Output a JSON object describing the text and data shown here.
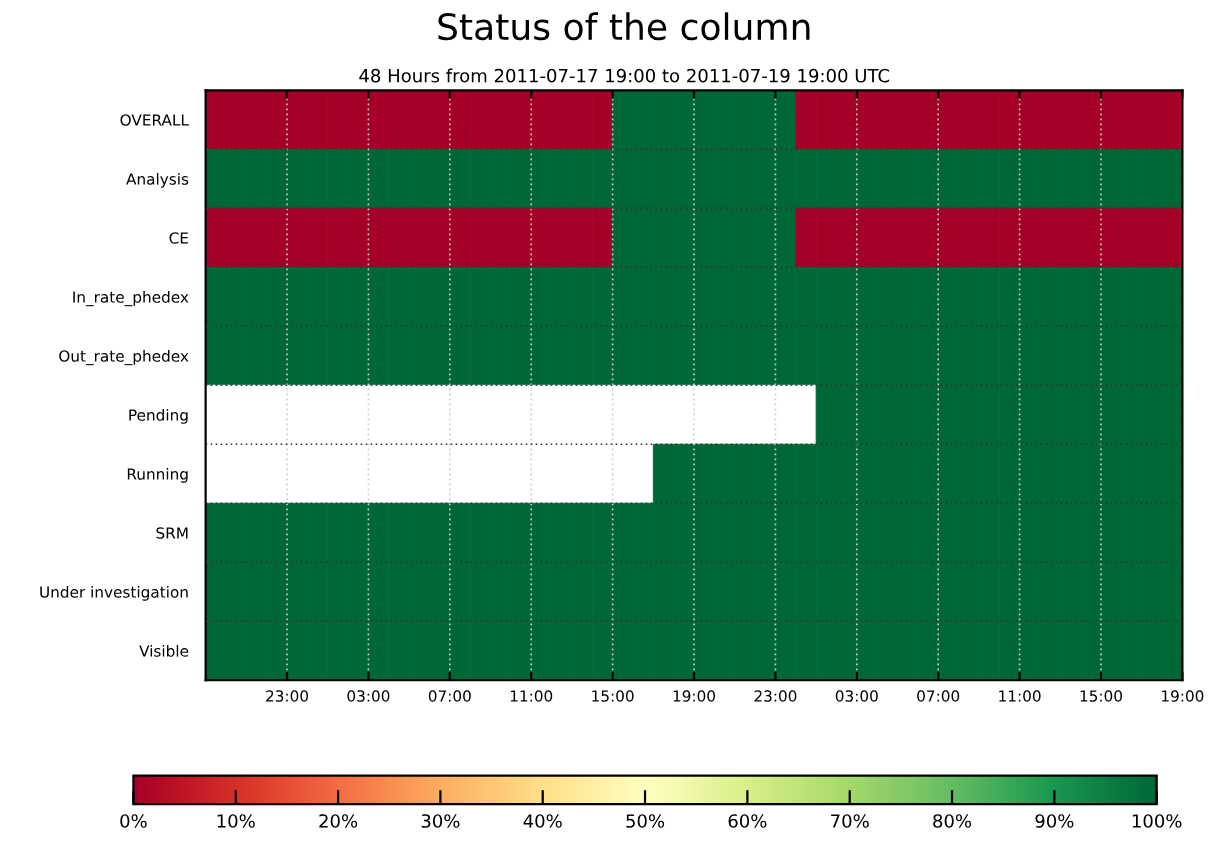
{
  "chart_data": {
    "type": "heatmap",
    "title": "Status of the column",
    "subtitle": "48 Hours from 2011-07-17 19:00 to 2011-07-19 19:00 UTC",
    "x": [
      "2011-07-17T19:30",
      "2011-07-17T20:30",
      "2011-07-17T21:30",
      "2011-07-17T22:30",
      "2011-07-17T23:30",
      "2011-07-18T00:30",
      "2011-07-18T01:30",
      "2011-07-18T02:30",
      "2011-07-18T03:30",
      "2011-07-18T04:30",
      "2011-07-18T05:30",
      "2011-07-18T06:30",
      "2011-07-18T07:30",
      "2011-07-18T08:30",
      "2011-07-18T09:30",
      "2011-07-18T10:30",
      "2011-07-18T11:30",
      "2011-07-18T12:30",
      "2011-07-18T13:30",
      "2011-07-18T14:30",
      "2011-07-18T15:30",
      "2011-07-18T16:30",
      "2011-07-18T17:30",
      "2011-07-18T18:30",
      "2011-07-18T19:30",
      "2011-07-18T20:30",
      "2011-07-18T21:30",
      "2011-07-18T22:30",
      "2011-07-18T23:30",
      "2011-07-19T00:30",
      "2011-07-19T01:30",
      "2011-07-19T02:30",
      "2011-07-19T03:30",
      "2011-07-19T04:30",
      "2011-07-19T05:30",
      "2011-07-19T06:30",
      "2011-07-19T07:30",
      "2011-07-19T08:30",
      "2011-07-19T09:30",
      "2011-07-19T10:30",
      "2011-07-19T11:30",
      "2011-07-19T12:30",
      "2011-07-19T13:30",
      "2011-07-19T14:30",
      "2011-07-19T15:30",
      "2011-07-19T16:30",
      "2011-07-19T17:30",
      "2011-07-19T18:30"
    ],
    "xlim": [
      "2011-07-17T19:00",
      "2011-07-19T19:00"
    ],
    "xticks": [
      {
        "value": "2011-07-17T23:00",
        "label": "23:00"
      },
      {
        "value": "2011-07-18T03:00",
        "label": "03:00"
      },
      {
        "value": "2011-07-18T07:00",
        "label": "07:00"
      },
      {
        "value": "2011-07-18T11:00",
        "label": "11:00"
      },
      {
        "value": "2011-07-18T15:00",
        "label": "15:00"
      },
      {
        "value": "2011-07-18T19:00",
        "label": "19:00"
      },
      {
        "value": "2011-07-18T23:00",
        "label": "23:00"
      },
      {
        "value": "2011-07-19T03:00",
        "label": "03:00"
      },
      {
        "value": "2011-07-19T07:00",
        "label": "07:00"
      },
      {
        "value": "2011-07-19T11:00",
        "label": "11:00"
      },
      {
        "value": "2011-07-19T15:00",
        "label": "15:00"
      },
      {
        "value": "2011-07-19T19:00",
        "label": "19:00"
      }
    ],
    "y_categories": [
      "OVERALL",
      "Analysis",
      "CE",
      "In_rate_phedex",
      "Out_rate_phedex",
      "Pending",
      "Running",
      "SRM",
      "Under investigation",
      "Visible"
    ],
    "cells": [
      [
        0,
        0,
        0,
        0,
        0,
        0,
        0,
        0,
        0,
        0,
        0,
        0,
        0,
        0,
        0,
        0,
        0,
        0,
        0,
        0,
        100,
        100,
        100,
        100,
        100,
        100,
        100,
        100,
        100,
        0,
        0,
        0,
        0,
        0,
        0,
        0,
        0,
        0,
        0,
        0,
        0,
        0,
        0,
        0,
        0,
        0,
        0,
        0
      ],
      [
        100,
        100,
        100,
        100,
        100,
        100,
        100,
        100,
        100,
        100,
        100,
        100,
        100,
        100,
        100,
        100,
        100,
        100,
        100,
        100,
        100,
        100,
        100,
        100,
        100,
        100,
        100,
        100,
        100,
        100,
        100,
        100,
        100,
        100,
        100,
        100,
        100,
        100,
        100,
        100,
        100,
        100,
        100,
        100,
        100,
        100,
        100,
        100
      ],
      [
        0,
        0,
        0,
        0,
        0,
        0,
        0,
        0,
        0,
        0,
        0,
        0,
        0,
        0,
        0,
        0,
        0,
        0,
        0,
        0,
        100,
        100,
        100,
        100,
        100,
        100,
        100,
        100,
        100,
        0,
        0,
        0,
        0,
        0,
        0,
        0,
        0,
        0,
        0,
        0,
        0,
        0,
        0,
        0,
        0,
        0,
        0,
        0
      ],
      [
        100,
        100,
        100,
        100,
        100,
        100,
        100,
        100,
        100,
        100,
        100,
        100,
        100,
        100,
        100,
        100,
        100,
        100,
        100,
        100,
        100,
        100,
        100,
        100,
        100,
        100,
        100,
        100,
        100,
        100,
        100,
        100,
        100,
        100,
        100,
        100,
        100,
        100,
        100,
        100,
        100,
        100,
        100,
        100,
        100,
        100,
        100,
        100
      ],
      [
        100,
        100,
        100,
        100,
        100,
        100,
        100,
        100,
        100,
        100,
        100,
        100,
        100,
        100,
        100,
        100,
        100,
        100,
        100,
        100,
        100,
        100,
        100,
        100,
        100,
        100,
        100,
        100,
        100,
        100,
        100,
        100,
        100,
        100,
        100,
        100,
        100,
        100,
        100,
        100,
        100,
        100,
        100,
        100,
        100,
        100,
        100,
        100
      ],
      [
        null,
        null,
        null,
        null,
        null,
        null,
        null,
        null,
        null,
        null,
        null,
        null,
        null,
        null,
        null,
        null,
        null,
        null,
        null,
        null,
        null,
        null,
        null,
        null,
        null,
        null,
        null,
        null,
        null,
        null,
        100,
        100,
        100,
        100,
        100,
        100,
        100,
        100,
        100,
        100,
        100,
        100,
        100,
        100,
        100,
        100,
        100,
        100
      ],
      [
        null,
        null,
        null,
        null,
        null,
        null,
        null,
        null,
        null,
        null,
        null,
        null,
        null,
        null,
        null,
        null,
        null,
        null,
        null,
        null,
        null,
        null,
        100,
        100,
        100,
        100,
        100,
        100,
        100,
        100,
        100,
        100,
        100,
        100,
        100,
        100,
        100,
        100,
        100,
        100,
        100,
        100,
        100,
        100,
        100,
        100,
        100,
        100
      ],
      [
        100,
        100,
        100,
        100,
        100,
        100,
        100,
        100,
        100,
        100,
        100,
        100,
        100,
        100,
        100,
        100,
        100,
        100,
        100,
        100,
        100,
        100,
        100,
        100,
        100,
        100,
        100,
        100,
        100,
        100,
        100,
        100,
        100,
        100,
        100,
        100,
        100,
        100,
        100,
        100,
        100,
        100,
        100,
        100,
        100,
        100,
        100,
        100
      ],
      [
        100,
        100,
        100,
        100,
        100,
        100,
        100,
        100,
        100,
        100,
        100,
        100,
        100,
        100,
        100,
        100,
        100,
        100,
        100,
        100,
        100,
        100,
        100,
        100,
        100,
        100,
        100,
        100,
        100,
        100,
        100,
        100,
        100,
        100,
        100,
        100,
        100,
        100,
        100,
        100,
        100,
        100,
        100,
        100,
        100,
        100,
        100,
        100
      ],
      [
        100,
        100,
        100,
        100,
        100,
        100,
        100,
        100,
        100,
        100,
        100,
        100,
        100,
        100,
        100,
        100,
        100,
        100,
        100,
        100,
        100,
        100,
        100,
        100,
        100,
        100,
        100,
        100,
        100,
        100,
        100,
        100,
        100,
        100,
        100,
        100,
        100,
        100,
        100,
        100,
        100,
        100,
        100,
        100,
        100,
        100,
        100,
        100
      ]
    ],
    "clim": [
      0,
      100
    ],
    "cticks": [
      {
        "value": 0,
        "label": "0%"
      },
      {
        "value": 10,
        "label": "10%"
      },
      {
        "value": 20,
        "label": "20%"
      },
      {
        "value": 30,
        "label": "30%"
      },
      {
        "value": 40,
        "label": "40%"
      },
      {
        "value": 50,
        "label": "50%"
      },
      {
        "value": 60,
        "label": "60%"
      },
      {
        "value": 70,
        "label": "70%"
      },
      {
        "value": 80,
        "label": "80%"
      },
      {
        "value": 90,
        "label": "90%"
      },
      {
        "value": 100,
        "label": "100%"
      }
    ],
    "grid": true
  }
}
